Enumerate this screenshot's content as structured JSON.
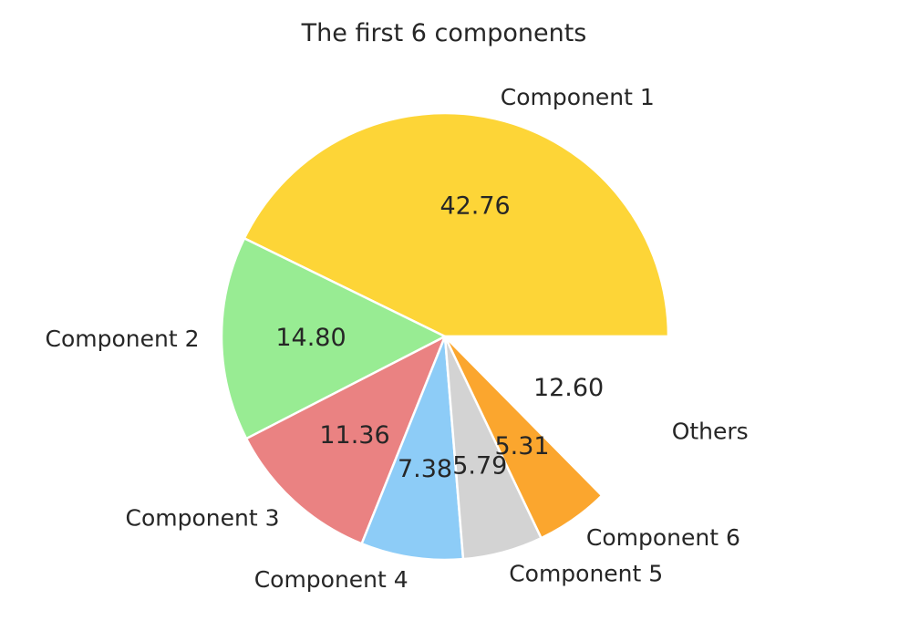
{
  "chart_data": {
    "type": "pie",
    "title": "The first 6 components",
    "categories": [
      "Component 1",
      "Component 2",
      "Component 3",
      "Component 4",
      "Component 5",
      "Component 6",
      "Others"
    ],
    "values": [
      42.76,
      14.8,
      11.36,
      7.38,
      5.79,
      5.31,
      12.6
    ],
    "value_labels": [
      "42.76",
      "14.80",
      "11.36",
      "7.38",
      "5.79",
      "5.31",
      "12.60"
    ],
    "colors": [
      "#fdd537",
      "#98ec93",
      "#ea8282",
      "#8dccf7",
      "#d3d3d3",
      "#fba62e",
      "#ffffff"
    ],
    "edge_color": "#ffffff",
    "start_angle_deg": 0,
    "direction": "counterclockwise",
    "legend": "none"
  }
}
